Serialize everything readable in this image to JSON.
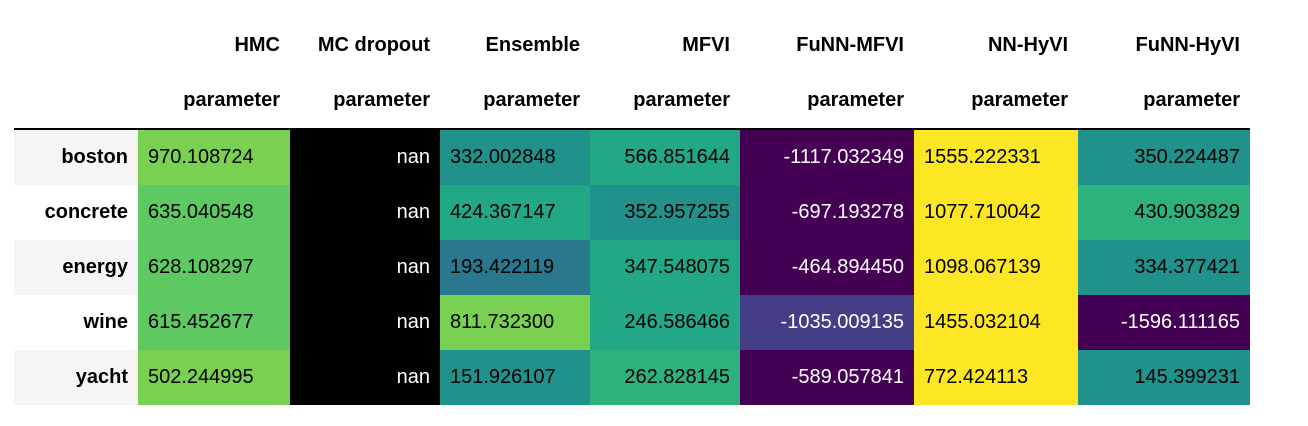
{
  "columns": [
    {
      "name": "HMC",
      "sub": "parameter"
    },
    {
      "name": "MC dropout",
      "sub": "parameter"
    },
    {
      "name": "Ensemble",
      "sub": "parameter"
    },
    {
      "name": "MFVI",
      "sub": "parameter"
    },
    {
      "name": "FuNN-MFVI",
      "sub": "parameter"
    },
    {
      "name": "NN-HyVI",
      "sub": "parameter"
    },
    {
      "name": "FuNN-HyVI",
      "sub": "parameter"
    }
  ],
  "rows": [
    {
      "label": "boston",
      "cells": [
        {
          "text": "970.108724",
          "bg": "#7ad151",
          "fg": "#000000"
        },
        {
          "text": "nan",
          "bg": "#000000",
          "fg": "#ffffff"
        },
        {
          "text": "332.002848",
          "bg": "#21918c",
          "fg": "#000000"
        },
        {
          "text": "566.851644",
          "bg": "#22a884",
          "fg": "#000000"
        },
        {
          "text": "-1117.032349",
          "bg": "#440154",
          "fg": "#ffffff"
        },
        {
          "text": "1555.222331",
          "bg": "#fde725",
          "fg": "#000000"
        },
        {
          "text": "350.224487",
          "bg": "#21918c",
          "fg": "#000000"
        }
      ]
    },
    {
      "label": "concrete",
      "cells": [
        {
          "text": "635.040548",
          "bg": "#5ec962",
          "fg": "#000000"
        },
        {
          "text": "nan",
          "bg": "#000000",
          "fg": "#ffffff"
        },
        {
          "text": "424.367147",
          "bg": "#22a884",
          "fg": "#000000"
        },
        {
          "text": "352.957255",
          "bg": "#21918c",
          "fg": "#000000"
        },
        {
          "text": "-697.193278",
          "bg": "#440154",
          "fg": "#ffffff"
        },
        {
          "text": "1077.710042",
          "bg": "#fde725",
          "fg": "#000000"
        },
        {
          "text": "430.903829",
          "bg": "#2db27d",
          "fg": "#000000"
        }
      ]
    },
    {
      "label": "energy",
      "cells": [
        {
          "text": "628.108297",
          "bg": "#5ec962",
          "fg": "#000000"
        },
        {
          "text": "nan",
          "bg": "#000000",
          "fg": "#ffffff"
        },
        {
          "text": "193.422119",
          "bg": "#2a788e",
          "fg": "#000000"
        },
        {
          "text": "347.548075",
          "bg": "#22a884",
          "fg": "#000000"
        },
        {
          "text": "-464.894450",
          "bg": "#440154",
          "fg": "#ffffff"
        },
        {
          "text": "1098.067139",
          "bg": "#fde725",
          "fg": "#000000"
        },
        {
          "text": "334.377421",
          "bg": "#21918c",
          "fg": "#000000"
        }
      ]
    },
    {
      "label": "wine",
      "cells": [
        {
          "text": "615.452677",
          "bg": "#5ec962",
          "fg": "#000000"
        },
        {
          "text": "nan",
          "bg": "#000000",
          "fg": "#ffffff"
        },
        {
          "text": "811.732300",
          "bg": "#7ad151",
          "fg": "#000000"
        },
        {
          "text": "246.586466",
          "bg": "#22a884",
          "fg": "#000000"
        },
        {
          "text": "-1035.009135",
          "bg": "#433e85",
          "fg": "#ffffff"
        },
        {
          "text": "1455.032104",
          "bg": "#fde725",
          "fg": "#000000"
        },
        {
          "text": "-1596.111165",
          "bg": "#440154",
          "fg": "#ffffff"
        }
      ]
    },
    {
      "label": "yacht",
      "cells": [
        {
          "text": "502.244995",
          "bg": "#7ad151",
          "fg": "#000000"
        },
        {
          "text": "nan",
          "bg": "#000000",
          "fg": "#ffffff"
        },
        {
          "text": "151.926107",
          "bg": "#21918c",
          "fg": "#000000"
        },
        {
          "text": "262.828145",
          "bg": "#2db27d",
          "fg": "#000000"
        },
        {
          "text": "-589.057841",
          "bg": "#440154",
          "fg": "#ffffff"
        },
        {
          "text": "772.424113",
          "bg": "#fde725",
          "fg": "#000000"
        },
        {
          "text": "145.399231",
          "bg": "#21918c",
          "fg": "#000000"
        }
      ]
    }
  ]
}
